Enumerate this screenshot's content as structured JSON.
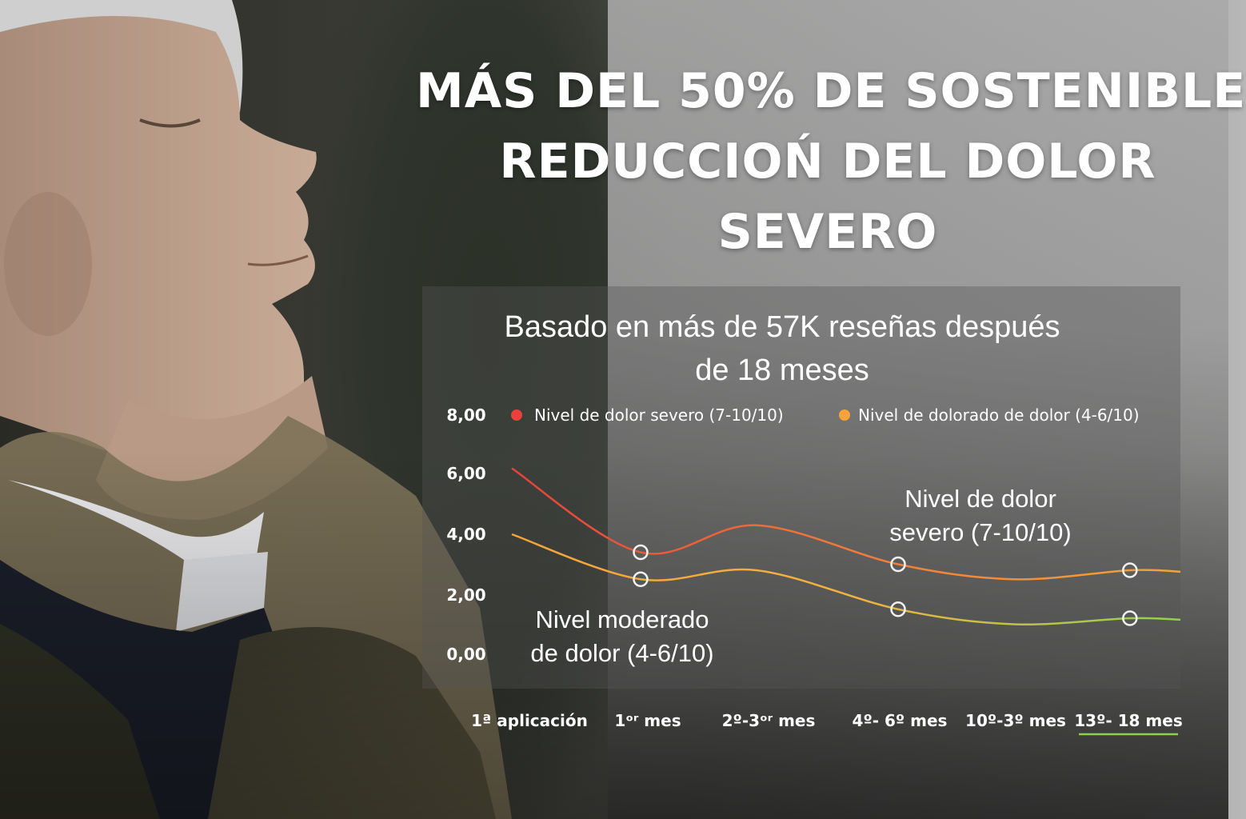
{
  "headline": {
    "line1": "MÁS DEL 50% DE SOSTENIBLE",
    "line2": "REDUCCIOŃ DEL DOLOR",
    "line3": "SEVERO"
  },
  "chart_data": {
    "type": "line",
    "title": "Basado en más de 57K reseñas después de 18 meses",
    "title_lines": [
      "Basado en más de 57K reseñas después",
      "de 18 meses"
    ],
    "categories": [
      "1ª aplicación",
      "1ᵒʳ mes",
      "2º-3ᵒʳ mes",
      "4º- 6º mes",
      "10º-3º mes",
      "13º- 18 mes"
    ],
    "y_ticks": [
      "8,00",
      "6,00",
      "4,00",
      "2,00",
      "0,00"
    ],
    "ylim": [
      0,
      8
    ],
    "grid": false,
    "legend_position": "top",
    "series": [
      {
        "name": "Nivel de dolor severo (7-10/10)",
        "color": "#e8423a",
        "x": [
          0,
          1,
          1.9,
          3,
          3.9,
          4.8
        ],
        "values": [
          6.2,
          3.4,
          4.3,
          3.0,
          2.5,
          2.8
        ],
        "markers": [
          1,
          3,
          4.8
        ]
      },
      {
        "name": "Nivel de dolorado de dolor (4-6/10)",
        "color": "#f5a33a",
        "x": [
          0,
          1,
          1.9,
          3,
          3.9,
          4.8
        ],
        "values": [
          4.0,
          2.5,
          2.8,
          1.5,
          1.0,
          1.2
        ],
        "markers": [
          1,
          3,
          4.8
        ]
      }
    ],
    "annotations": [
      {
        "lines": [
          "Nivel de dolor",
          "severo (7-10/10)"
        ]
      },
      {
        "lines": [
          "Nivel moderado",
          "de dolor (4-6/10)"
        ]
      }
    ],
    "highlighted_category": "13º- 18 mes",
    "highlight_color": "#8fd14f"
  }
}
